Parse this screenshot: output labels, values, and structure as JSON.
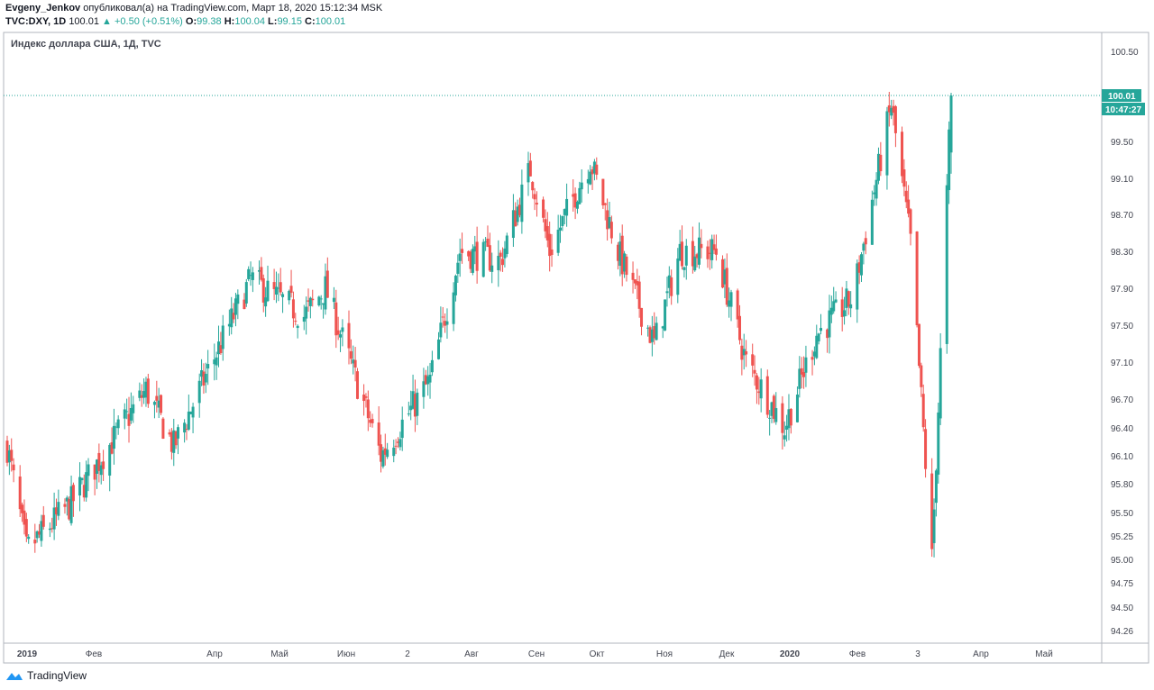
{
  "header": {
    "author": "Evgeny_Jenkov",
    "published_text": "опубликовал(а) на TradingView.com, Март 18, 2020 15:12:34 MSK",
    "symbol": "TVC:DXY, 1D",
    "last": "100.01",
    "change_arrow": "▲",
    "change": "+0.50 (+0.51%)",
    "o_label": "O:",
    "o_value": "99.38",
    "h_label": "H:",
    "h_value": "100.04",
    "l_label": "L:",
    "l_value": "99.15",
    "c_label": "C:",
    "c_value": "100.01"
  },
  "footer": {
    "brand": "TradingView",
    "logo_icon": "tradingview-logo-icon"
  },
  "colors": {
    "up": "#26a69a",
    "down": "#ef5350",
    "axis": "#131722",
    "border": "#b2b5be"
  },
  "chart_data": {
    "type": "candlestick",
    "title": "Индекс доллара США, 1Д, TVC",
    "y_ticks": [
      "94.26",
      "94.50",
      "94.75",
      "95.00",
      "95.25",
      "95.50",
      "95.80",
      "96.10",
      "96.40",
      "96.70",
      "97.10",
      "97.50",
      "97.90",
      "98.30",
      "98.70",
      "99.10",
      "99.50",
      "100.50"
    ],
    "x_ticks": [
      {
        "label": "2019",
        "bold": true
      },
      {
        "label": "Фев",
        "bold": false
      },
      {
        "label": "Апр",
        "bold": false
      },
      {
        "label": "Май",
        "bold": false
      },
      {
        "label": "Июн",
        "bold": false
      },
      {
        "label": "2",
        "bold": false
      },
      {
        "label": "Авг",
        "bold": false
      },
      {
        "label": "Сен",
        "bold": false
      },
      {
        "label": "Окт",
        "bold": false
      },
      {
        "label": "Ноя",
        "bold": false
      },
      {
        "label": "Дек",
        "bold": false
      },
      {
        "label": "2020",
        "bold": true
      },
      {
        "label": "Фев",
        "bold": false
      },
      {
        "label": "3",
        "bold": false
      },
      {
        "label": "Апр",
        "bold": false
      },
      {
        "label": "Май",
        "bold": false
      }
    ],
    "last_price": 100.01,
    "last_price_label": "100.01",
    "countdown_label": "10:47:27",
    "anchor_closes": [
      {
        "date": "2019-01-01",
        "close": 96.2
      },
      {
        "date": "2019-01-10",
        "close": 95.1
      },
      {
        "date": "2019-01-31",
        "close": 95.6
      },
      {
        "date": "2019-03-07",
        "close": 96.8
      },
      {
        "date": "2019-03-20",
        "close": 96.2
      },
      {
        "date": "2019-04-25",
        "close": 98.0
      },
      {
        "date": "2019-05-20",
        "close": 97.6
      },
      {
        "date": "2019-05-30",
        "close": 97.9
      },
      {
        "date": "2019-06-25",
        "close": 96.1
      },
      {
        "date": "2019-07-18",
        "close": 96.9
      },
      {
        "date": "2019-08-01",
        "close": 98.3
      },
      {
        "date": "2019-08-20",
        "close": 98.2
      },
      {
        "date": "2019-09-03",
        "close": 99.2
      },
      {
        "date": "2019-09-12",
        "close": 98.3
      },
      {
        "date": "2019-10-01",
        "close": 99.3
      },
      {
        "date": "2019-10-14",
        "close": 98.3
      },
      {
        "date": "2019-10-31",
        "close": 97.3
      },
      {
        "date": "2019-11-12",
        "close": 98.3
      },
      {
        "date": "2019-11-29",
        "close": 98.3
      },
      {
        "date": "2019-12-13",
        "close": 97.1
      },
      {
        "date": "2019-12-31",
        "close": 96.4
      },
      {
        "date": "2020-01-15",
        "close": 97.4
      },
      {
        "date": "2020-02-01",
        "close": 97.8
      },
      {
        "date": "2020-02-19",
        "close": 99.9
      },
      {
        "date": "2020-02-28",
        "close": 98.4
      },
      {
        "date": "2020-03-09",
        "close": 95.0
      },
      {
        "date": "2020-03-12",
        "close": 96.6
      },
      {
        "date": "2020-03-17",
        "close": 99.5
      },
      {
        "date": "2020-03-18",
        "close": 100.01
      }
    ]
  }
}
